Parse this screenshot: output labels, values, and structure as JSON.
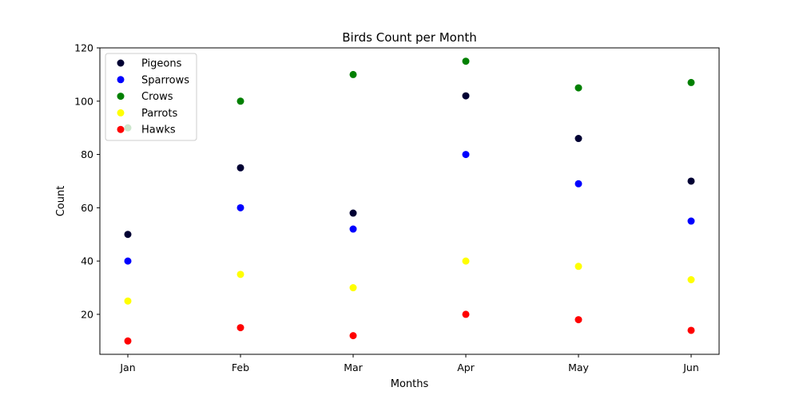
{
  "chart_data": {
    "type": "scatter",
    "title": "Birds Count per Month",
    "xlabel": "Months",
    "ylabel": "Count",
    "categories": [
      "Jan",
      "Feb",
      "Mar",
      "Apr",
      "May",
      "Jun"
    ],
    "ylim": [
      5,
      120
    ],
    "yticks": [
      20,
      40,
      60,
      80,
      100,
      120
    ],
    "grid": false,
    "legend_position": "top-left",
    "series": [
      {
        "name": "Pigeons",
        "color": "#000033",
        "values": [
          50,
          75,
          58,
          102,
          86,
          70
        ]
      },
      {
        "name": "Sparrows",
        "color": "#0000ff",
        "values": [
          40,
          60,
          52,
          80,
          69,
          55
        ]
      },
      {
        "name": "Crows",
        "color": "#008000",
        "values": [
          90,
          100,
          110,
          115,
          105,
          107
        ]
      },
      {
        "name": "Parrots",
        "color": "#ffff00",
        "values": [
          25,
          35,
          30,
          40,
          38,
          33
        ]
      },
      {
        "name": "Hawks",
        "color": "#ff0000",
        "values": [
          10,
          15,
          12,
          20,
          18,
          14
        ]
      }
    ]
  }
}
